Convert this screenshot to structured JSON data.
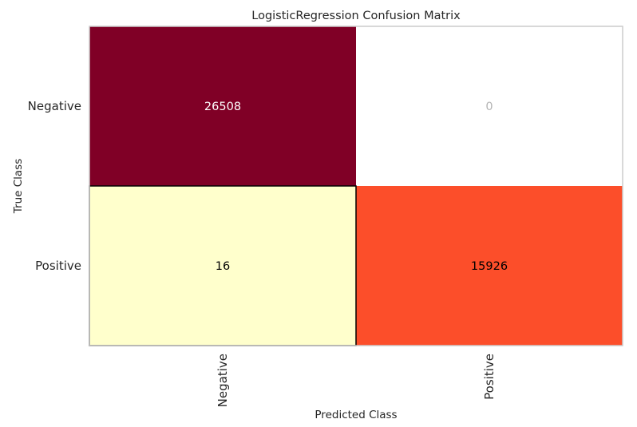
{
  "chart_data": {
    "type": "heatmap",
    "title": "LogisticRegression Confusion Matrix",
    "xlabel": "Predicted Class",
    "ylabel": "True Class",
    "x_categories": [
      "Negative",
      "Positive"
    ],
    "y_categories": [
      "Negative",
      "Positive"
    ],
    "values": [
      [
        26508,
        0
      ],
      [
        16,
        15926
      ]
    ],
    "cell_colors": [
      [
        "#800026",
        "#ffffff"
      ],
      [
        "#ffffcc",
        "#fc4e2a"
      ]
    ],
    "cell_text_colors": [
      [
        "#ffffff",
        "#b3b3b3"
      ],
      [
        "#000000",
        "#000000"
      ]
    ],
    "grid": false
  }
}
